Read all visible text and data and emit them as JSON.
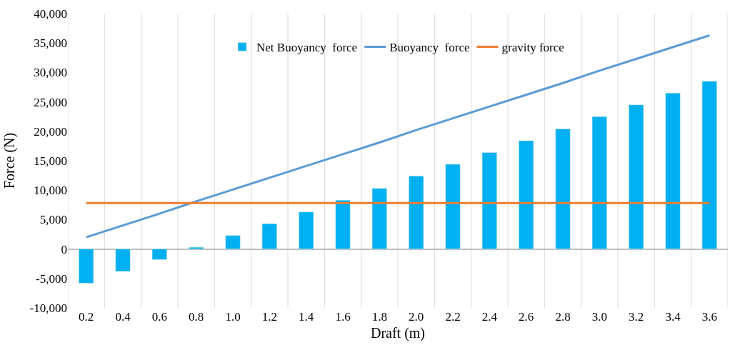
{
  "chart_data": {
    "type": "bar",
    "xlabel": "Draft (m)",
    "ylabel": "Force (N)",
    "categories": [
      "0.2",
      "0.4",
      "0.6",
      "0.8",
      "1.0",
      "1.2",
      "1.4",
      "1.6",
      "1.8",
      "2.0",
      "2.2",
      "2.4",
      "2.6",
      "2.8",
      "3.0",
      "3.2",
      "3.4",
      "3.6"
    ],
    "series": [
      {
        "name": "Net Buoyancy  force",
        "color": "#00b0f0",
        "values": [
          -5800,
          -3800,
          -1800,
          300,
          2300,
          4300,
          6300,
          8300,
          10300,
          12400,
          14400,
          16400,
          18400,
          20400,
          22500,
          24500,
          26500,
          28500
        ]
      },
      {
        "name": "Buoyancy  force",
        "type": "line",
        "color": "#5b9bd5",
        "values": [
          2000,
          4000,
          6000,
          8100,
          10100,
          12100,
          14100,
          16100,
          18100,
          20200,
          22200,
          24200,
          26200,
          28200,
          30300,
          32300,
          34300,
          36300
        ]
      },
      {
        "name": "gravity force",
        "type": "line",
        "color": "#ed7d31",
        "values": [
          7800,
          7800,
          7800,
          7800,
          7800,
          7800,
          7800,
          7800,
          7800,
          7800,
          7800,
          7800,
          7800,
          7800,
          7800,
          7800,
          7800,
          7800
        ]
      }
    ],
    "ylim": [
      -10000,
      40000
    ],
    "yticks": [
      {
        "value": -10000,
        "label": "-10,000"
      },
      {
        "value": -5000,
        "label": "-5,000"
      },
      0,
      {
        "value": 5000,
        "label": "5,000"
      },
      {
        "value": 10000,
        "label": "10,000"
      },
      {
        "value": 15000,
        "label": "15,000"
      },
      {
        "value": 20000,
        "label": "20,000"
      },
      {
        "value": 25000,
        "label": "25,000"
      },
      {
        "value": 30000,
        "label": "30,000"
      },
      {
        "value": 35000,
        "label": "35,000"
      },
      {
        "value": 40000,
        "label": "40,000"
      }
    ],
    "grid": "x",
    "legend": "top",
    "marker": "none",
    "line_style": "solid"
  }
}
